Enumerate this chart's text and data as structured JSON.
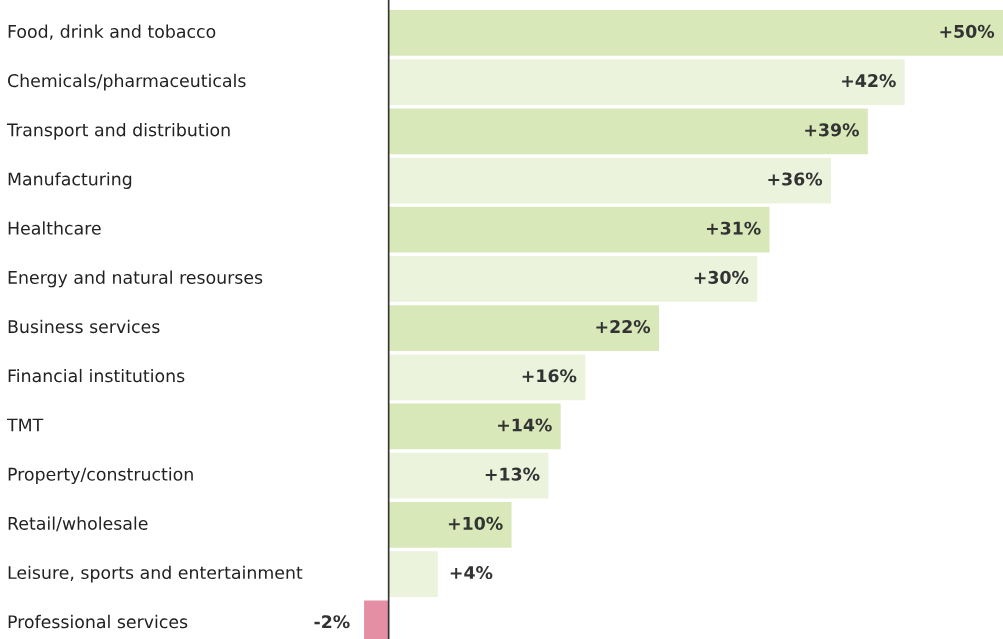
{
  "chart_data": {
    "type": "bar",
    "orientation": "horizontal",
    "categories": [
      "Food, drink and tobacco",
      "Chemicals/pharmaceuticals",
      "Transport and distribution",
      "Manufacturing",
      "Healthcare",
      "Energy and natural resourses",
      "Business services",
      "Financial institutions",
      "TMT",
      "Property/construction",
      "Retail/wholesale",
      "Leisure, sports and entertainment",
      "Professional services"
    ],
    "values": [
      50,
      42,
      39,
      36,
      31,
      30,
      22,
      16,
      14,
      13,
      10,
      4,
      -2
    ],
    "value_labels": [
      "+50%",
      "+42%",
      "+39%",
      "+36%",
      "+31%",
      "+30%",
      "+22%",
      "+16%",
      "+14%",
      "+13%",
      "+10%",
      "+4%",
      "-2%"
    ],
    "colors": [
      "#d9e8b9",
      "#ebf3dd",
      "#d9e8b9",
      "#ebf3dd",
      "#d9e8b9",
      "#ebf3dd",
      "#d9e8b9",
      "#ebf3dd",
      "#d9e8b9",
      "#ebf3dd",
      "#d9e8b9",
      "#ebf3dd",
      "#e48fa3"
    ],
    "tick_labels": "y"
  }
}
